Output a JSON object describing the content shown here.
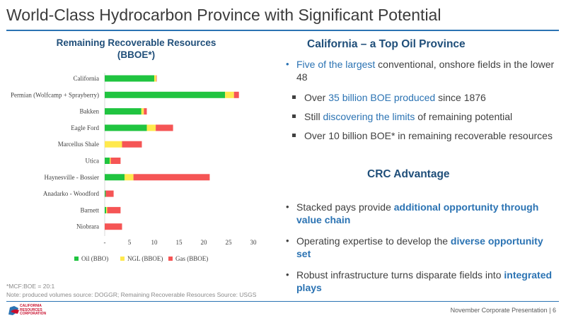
{
  "slide": {
    "title": "World-Class Hydrocarbon Province with Significant Potential",
    "footer": "November Corporate Presentation  | 6",
    "logo_lines": [
      "CALIFORNIA",
      "RESOURCES",
      "CORPORATION"
    ],
    "accent_color": "#2b73b3"
  },
  "chart_title": [
    "Remaining Recoverable Resources",
    "(BBOE*)"
  ],
  "notes": [
    "*MCF:BOE = 20:1",
    "Note: produced volumes source: DOGGR; Remaining Recoverable Resources Source: USGS"
  ],
  "chart_data": {
    "type": "bar",
    "orientation": "horizontal",
    "stacked": true,
    "title": "Remaining Recoverable Resources (BBOE*)",
    "categories": [
      "California",
      "Permian (Wolfcamp + Sprayberry)",
      "Bakken",
      "Eagle Ford",
      "Marcellus Shale",
      "Utica",
      "Haynesville - Bossier",
      "Anadarko - Woodford",
      "Barnett",
      "Niobrara"
    ],
    "series": [
      {
        "name": "Oil (BBO)",
        "color": "#20c440",
        "values": [
          10.0,
          24.3,
          7.4,
          8.5,
          0,
          1.0,
          4.0,
          0.2,
          0.3,
          0
        ]
      },
      {
        "name": "NGL (BBOE)",
        "color": "#ffe94d",
        "values": [
          0.4,
          1.8,
          0.5,
          1.8,
          3.5,
          0.2,
          1.8,
          0,
          0.2,
          0
        ]
      },
      {
        "name": "Gas (BBOE)",
        "color": "#f55555",
        "values": [
          0.1,
          1.0,
          0.6,
          3.5,
          4.0,
          2.0,
          15.4,
          1.6,
          2.7,
          3.5
        ]
      }
    ],
    "xlim": [
      0,
      30
    ],
    "x_ticks": [
      "-",
      "5",
      "10",
      "15",
      "20",
      "25",
      "30"
    ],
    "x_tick_values": [
      0,
      5,
      10,
      15,
      20,
      25,
      30
    ],
    "gridlines": false,
    "legend_position": "bottom"
  },
  "panel": {
    "heading": "California – a Top Oil Province",
    "bullet1": {
      "hl": "Five of the largest",
      "rest": " conventional, onshore fields in the lower 48"
    },
    "subs": [
      {
        "pre": "Over ",
        "hl": "35 billion BOE produced",
        "post": " since 1876"
      },
      {
        "pre": "Still ",
        "hl": "discovering the limits",
        "post": " of remaining potential"
      },
      {
        "pre": "Over 10 billion BOE* in remaining recoverable resources",
        "hl": "",
        "post": ""
      }
    ],
    "advantage_heading": "CRC Advantage",
    "advantages": [
      {
        "pre": "Stacked pays provide ",
        "hl": "additional opportunity through value chain"
      },
      {
        "pre": "Operating expertise to develop the ",
        "hl": "diverse opportunity set"
      },
      {
        "pre": "Robust infrastructure turns disparate fields into ",
        "hl": "integrated plays"
      }
    ]
  }
}
